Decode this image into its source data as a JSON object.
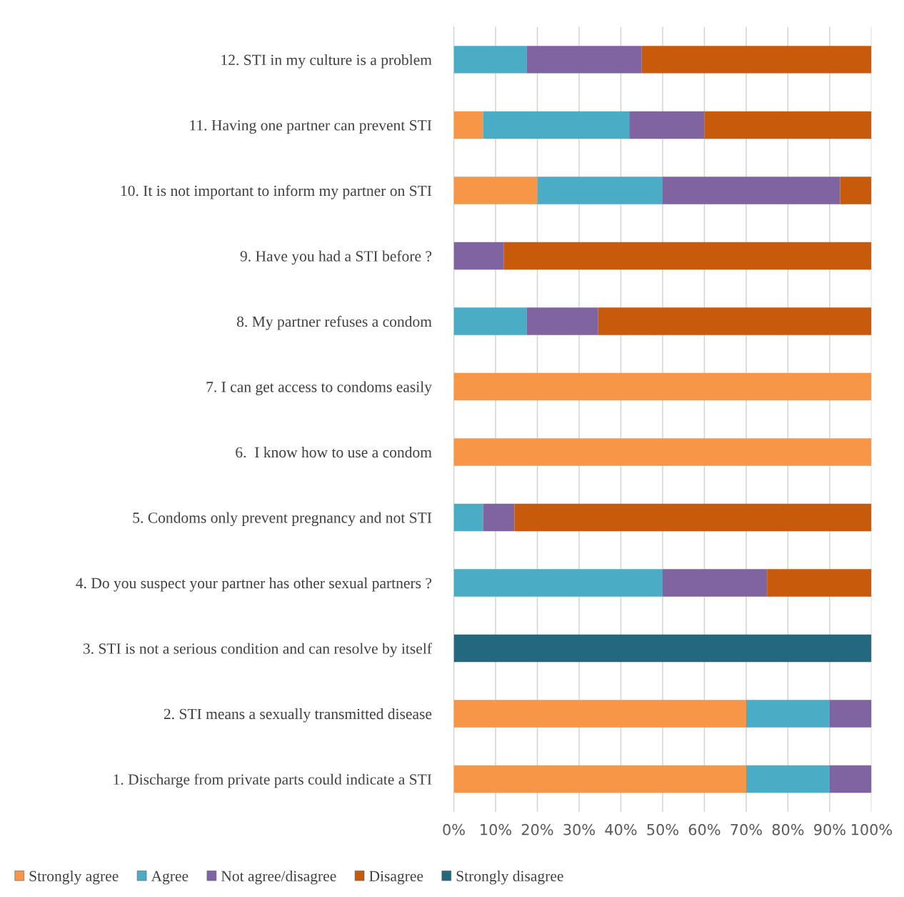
{
  "chart_data": {
    "type": "bar",
    "orientation": "horizontal",
    "stacked": true,
    "categories": [
      "12. STI in my culture is a problem",
      "11. Having one partner can prevent STI",
      "10. It is not important to inform my partner on STI",
      "9. Have you had a STI before ?",
      "8. My partner refuses a condom",
      "7. I can get access to condoms easily",
      "6.  I know how to use a condom",
      "5. Condoms only prevent pregnancy and not STI",
      "4. Do you suspect your partner has other sexual partners ?",
      "3. STI is not a serious condition and can resolve by itself",
      "2. STI means a sexually transmitted disease",
      "1. Discharge from private parts could indicate a STI"
    ],
    "series": [
      {
        "name": "Strongly agree",
        "color": "#f79646",
        "values": [
          0,
          7,
          20,
          0,
          0,
          100,
          100,
          0,
          0,
          0,
          70,
          70
        ]
      },
      {
        "name": "Agree",
        "color": "#4bacc6",
        "values": [
          17.5,
          35,
          30,
          0,
          17.5,
          0,
          0,
          7,
          50,
          0,
          20,
          20
        ]
      },
      {
        "name": "Not agree/disagree",
        "color": "#8064a2",
        "values": [
          27.5,
          18,
          42.5,
          12,
          17,
          0,
          0,
          7.5,
          25,
          0,
          10,
          10
        ]
      },
      {
        "name": "Disagree",
        "color": "#c85a0c",
        "values": [
          55,
          40,
          7.5,
          88,
          65.5,
          0,
          0,
          85.5,
          25,
          0,
          0,
          0
        ]
      },
      {
        "name": "Strongly disagree",
        "color": "#23687f",
        "values": [
          0,
          0,
          0,
          0,
          0,
          0,
          0,
          0,
          0,
          100,
          0,
          0
        ]
      }
    ],
    "xlim": [
      0,
      100
    ],
    "xticks": [
      {
        "value": 0,
        "label": "0%"
      },
      {
        "value": 10,
        "label": "10%"
      },
      {
        "value": 20,
        "label": "20%"
      },
      {
        "value": 30,
        "label": "30%"
      },
      {
        "value": 40,
        "label": "40%"
      },
      {
        "value": 50,
        "label": "50%"
      },
      {
        "value": 60,
        "label": "60%"
      },
      {
        "value": 70,
        "label": "70%"
      },
      {
        "value": 80,
        "label": "80%"
      },
      {
        "value": 90,
        "label": "90%"
      },
      {
        "value": 100,
        "label": "100%"
      }
    ],
    "grid": "x",
    "legend": "bottom"
  }
}
